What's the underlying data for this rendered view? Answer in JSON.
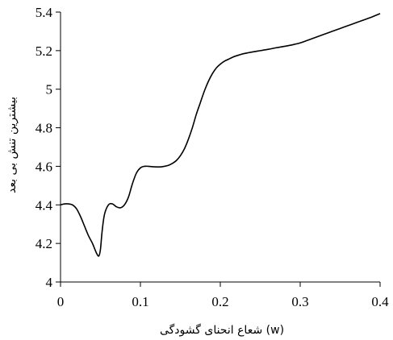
{
  "chart_data": {
    "type": "line",
    "title": "",
    "xlabel": "(w) شعاع انحنای گشودگی",
    "ylabel": "بیشترین تنش بی بعد",
    "xlim": [
      0,
      0.4
    ],
    "ylim": [
      4,
      5.4
    ],
    "x_ticks": [
      "0",
      "0.1",
      "0.2",
      "0.3",
      "0.4"
    ],
    "y_ticks": [
      "4",
      "4.2",
      "4.4",
      "4.6",
      "4.8",
      "5",
      "5.2",
      "5.4"
    ],
    "x_tick_values": [
      0,
      0.1,
      0.2,
      0.3,
      0.4
    ],
    "y_tick_values": [
      4,
      4.2,
      4.4,
      4.6,
      4.8,
      5,
      5.2,
      5.4
    ],
    "grid": false,
    "series": [
      {
        "line_color": "#000000",
        "x": [
          0,
          0.005,
          0.01,
          0.015,
          0.02,
          0.025,
          0.03,
          0.035,
          0.04,
          0.045,
          0.048,
          0.05,
          0.052,
          0.055,
          0.06,
          0.065,
          0.07,
          0.075,
          0.08,
          0.085,
          0.09,
          0.095,
          0.1,
          0.105,
          0.11,
          0.115,
          0.12,
          0.125,
          0.13,
          0.135,
          0.14,
          0.145,
          0.15,
          0.155,
          0.16,
          0.165,
          0.17,
          0.175,
          0.18,
          0.185,
          0.19,
          0.195,
          0.2,
          0.205,
          0.21,
          0.215,
          0.22,
          0.23,
          0.24,
          0.25,
          0.26,
          0.27,
          0.28,
          0.29,
          0.3,
          0.31,
          0.32,
          0.33,
          0.34,
          0.35,
          0.36,
          0.37,
          0.38,
          0.39,
          0.4
        ],
        "y": [
          4.4,
          4.405,
          4.405,
          4.4,
          4.38,
          4.34,
          4.29,
          4.24,
          4.2,
          4.15,
          4.135,
          4.17,
          4.26,
          4.35,
          4.4,
          4.405,
          4.39,
          4.385,
          4.4,
          4.44,
          4.51,
          4.565,
          4.592,
          4.6,
          4.6,
          4.598,
          4.597,
          4.597,
          4.6,
          4.605,
          4.615,
          4.63,
          4.655,
          4.69,
          4.74,
          4.8,
          4.87,
          4.93,
          4.99,
          5.04,
          5.08,
          5.11,
          5.13,
          5.145,
          5.155,
          5.165,
          5.173,
          5.185,
          5.193,
          5.2,
          5.207,
          5.215,
          5.222,
          5.23,
          5.24,
          5.255,
          5.27,
          5.285,
          5.3,
          5.315,
          5.33,
          5.345,
          5.36,
          5.375,
          5.392
        ]
      }
    ]
  }
}
